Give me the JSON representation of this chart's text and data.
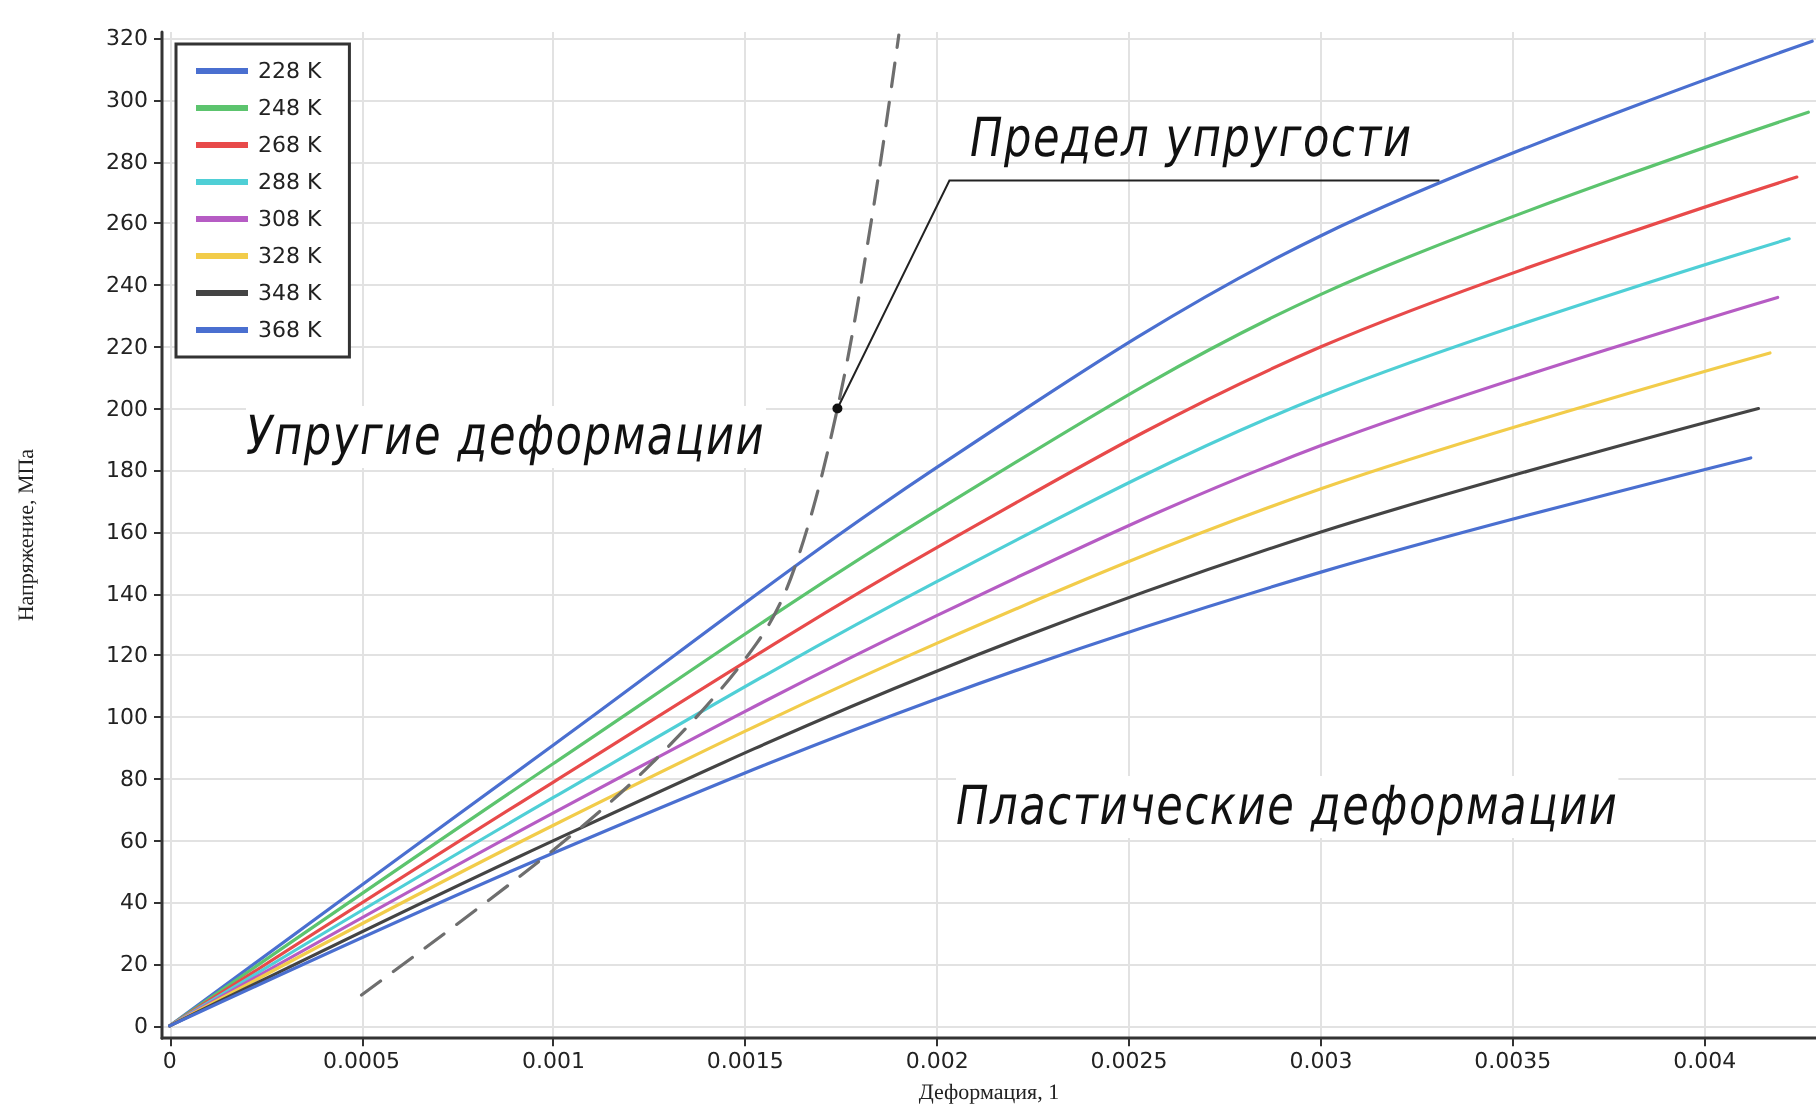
{
  "chart_data": {
    "type": "line",
    "xlabel": "Деформация, 1",
    "ylabel": "Напряжение, МПа",
    "xlim": [
      -2e-05,
      0.00429
    ],
    "ylim": [
      -4,
      322
    ],
    "xticks": [
      0,
      0.0005,
      0.001,
      0.0015,
      0.002,
      0.0025,
      0.003,
      0.0035,
      0.004
    ],
    "yticks": [
      0,
      20,
      40,
      60,
      80,
      100,
      120,
      140,
      160,
      180,
      200,
      220,
      240,
      260,
      280,
      300,
      320
    ],
    "grid": true,
    "legend": "top left",
    "marker": "none",
    "line_style": "solid",
    "annotations": [
      "Упругие деформации",
      "Пластические деформации",
      {
        "text": "Предел упругости",
        "x": 0.00174,
        "y": 200
      }
    ],
    "series": [
      {
        "name": "228 K",
        "color": "#4a6fd0",
        "x": [
          0,
          0.001,
          0.002,
          0.003,
          0.00428
        ],
        "values": [
          0,
          91,
          181,
          256,
          319
        ]
      },
      {
        "name": "248 K",
        "color": "#5cc46e",
        "x": [
          0,
          0.001,
          0.002,
          0.003,
          0.00427
        ],
        "values": [
          0,
          85,
          167,
          237,
          296
        ]
      },
      {
        "name": "268 K",
        "color": "#e84a4a",
        "x": [
          0,
          0.001,
          0.002,
          0.003,
          0.00424
        ],
        "values": [
          0,
          79,
          155,
          220,
          275
        ]
      },
      {
        "name": "288 K",
        "color": "#4fcfd6",
        "x": [
          0,
          0.001,
          0.002,
          0.003,
          0.00422
        ],
        "values": [
          0,
          74,
          144,
          204,
          255
        ]
      },
      {
        "name": "308 K",
        "color": "#b65cc4",
        "x": [
          0,
          0.001,
          0.002,
          0.003,
          0.00419
        ],
        "values": [
          0,
          69,
          133,
          188,
          236
        ]
      },
      {
        "name": "328 K",
        "color": "#f2cc4a",
        "x": [
          0,
          0.001,
          0.002,
          0.003,
          0.00417
        ],
        "values": [
          0,
          65,
          124,
          174,
          218
        ]
      },
      {
        "name": "348 K",
        "color": "#444444",
        "x": [
          0,
          0.001,
          0.002,
          0.003,
          0.00414
        ],
        "values": [
          0,
          60,
          115,
          160,
          200
        ]
      },
      {
        "name": "368 K",
        "color": "#4a6fd0",
        "x": [
          0,
          0.001,
          0.002,
          0.003,
          0.00412
        ],
        "values": [
          0,
          56,
          106,
          147,
          184
        ]
      },
      {
        "color": "#6e6e6e",
        "line_style": "dashed",
        "x": [
          0.0005,
          0.001,
          0.00128,
          0.00153,
          0.00163,
          0.00174,
          0.00183,
          0.0019
        ],
        "values": [
          10,
          57,
          88,
          124,
          149,
          200,
          262,
          321
        ]
      }
    ]
  }
}
